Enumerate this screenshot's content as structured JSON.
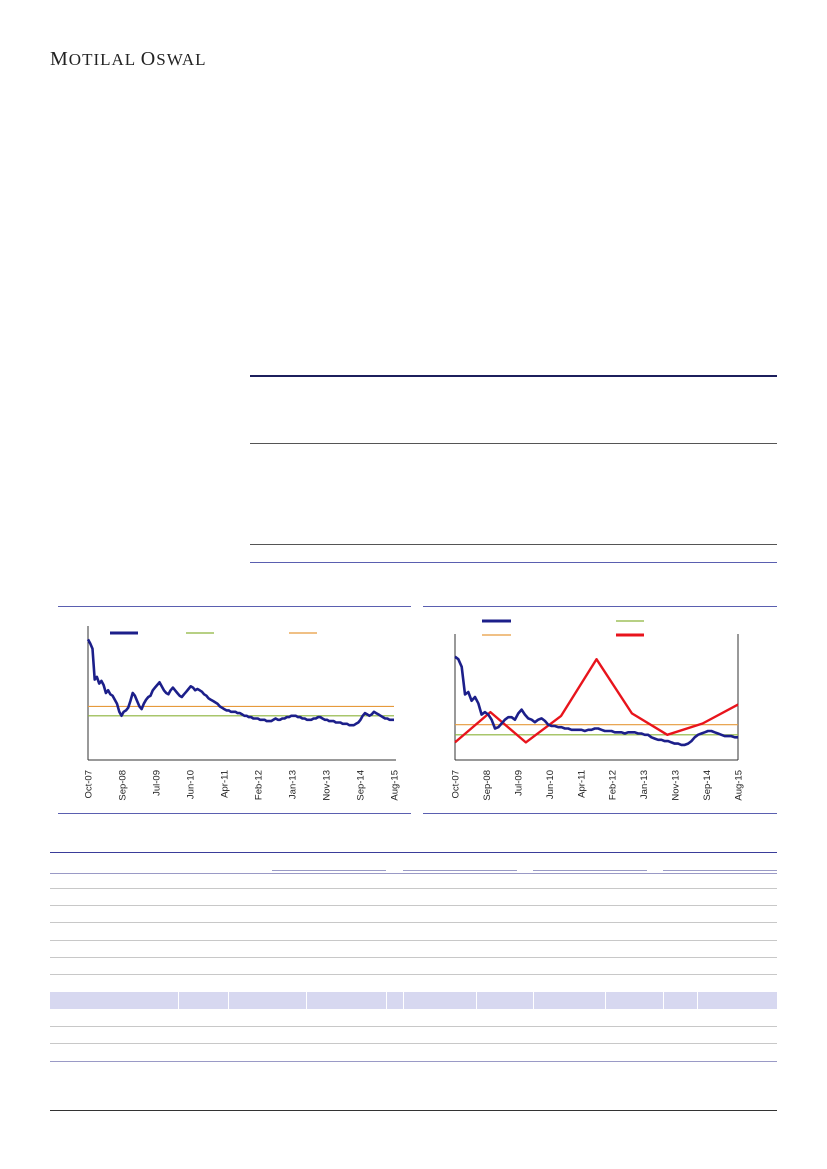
{
  "brand": {
    "first_initial": "M",
    "first_rest": "OTILAL",
    "second_initial": "O",
    "second_rest": "SWAL"
  },
  "colors": {
    "navy": "#1c1f8a",
    "green": "#8cb33a",
    "orange": "#e69a3c",
    "red": "#e8141c"
  },
  "chart_data": [
    {
      "type": "line",
      "x_ticks": [
        "Oct-07",
        "Sep-08",
        "Jul-09",
        "Jun-10",
        "Apr-11",
        "Feb-12",
        "Jan-13",
        "Nov-13",
        "Sep-14",
        "Aug-15"
      ],
      "ylim": [
        0,
        100
      ],
      "grid": false,
      "legend_position": "top-left",
      "series": [
        {
          "legend_key": "navy",
          "values": [
            90,
            87,
            83,
            60,
            62,
            57,
            59,
            56,
            50,
            52,
            49,
            48,
            45,
            42,
            36,
            33,
            36,
            37,
            39,
            44,
            50,
            48,
            44,
            40,
            38,
            42,
            45,
            47,
            48,
            52,
            54,
            56,
            58,
            55,
            52,
            50,
            49,
            52,
            54,
            52,
            50,
            48,
            47,
            49,
            51,
            53,
            55,
            54,
            52,
            53,
            52,
            51,
            49,
            48,
            46,
            45,
            44,
            43,
            42,
            40,
            39,
            38,
            37,
            37,
            36,
            36,
            36,
            35,
            35,
            34,
            33,
            33,
            32,
            32,
            31,
            31,
            31,
            30,
            30,
            30,
            29,
            29,
            29,
            30,
            31,
            30,
            30,
            31,
            31,
            32,
            32,
            33,
            33,
            33,
            32,
            32,
            31,
            31,
            30,
            30,
            30,
            31,
            31,
            32,
            32,
            31,
            30,
            30,
            29,
            29,
            29,
            28,
            28,
            28,
            27,
            27,
            27,
            26,
            26,
            26,
            27,
            28,
            30,
            33,
            35,
            34,
            33,
            34,
            36,
            35,
            34,
            33,
            32,
            31,
            31,
            30,
            30,
            30
          ]
        },
        {
          "legend_key": "green",
          "values": [
            33,
            33
          ]
        },
        {
          "legend_key": "orange",
          "values": [
            40,
            40
          ]
        }
      ]
    },
    {
      "type": "line",
      "x_ticks": [
        "Oct-07",
        "Sep-08",
        "Jul-09",
        "Jun-10",
        "Apr-11",
        "Feb-12",
        "Jan-13",
        "Nov-13",
        "Sep-14",
        "Aug-15"
      ],
      "ylim": [
        0,
        100
      ],
      "grid": false,
      "legend_position": "top",
      "series": [
        {
          "legend_key": "navy",
          "values": [
            82,
            80,
            74,
            52,
            54,
            47,
            50,
            45,
            36,
            38,
            36,
            32,
            25,
            26,
            29,
            32,
            34,
            34,
            32,
            37,
            40,
            36,
            33,
            32,
            30,
            32,
            33,
            31,
            28,
            27,
            27,
            26,
            26,
            25,
            25,
            24,
            24,
            24,
            24,
            23,
            24,
            24,
            25,
            25,
            24,
            23,
            23,
            23,
            22,
            22,
            22,
            21,
            22,
            22,
            22,
            21,
            21,
            20,
            20,
            18,
            17,
            16,
            16,
            15,
            15,
            14,
            13,
            13,
            12,
            12,
            13,
            15,
            18,
            20,
            21,
            22,
            23,
            23,
            22,
            21,
            20,
            19,
            19,
            19,
            18,
            18
          ]
        },
        {
          "legend_key": "green",
          "values": [
            20,
            20
          ]
        },
        {
          "legend_key": "orange",
          "values": [
            28,
            28
          ]
        },
        {
          "legend_key": "red",
          "values": [
            14,
            38,
            14,
            35,
            80,
            37,
            20,
            29,
            44
          ]
        }
      ]
    }
  ]
}
